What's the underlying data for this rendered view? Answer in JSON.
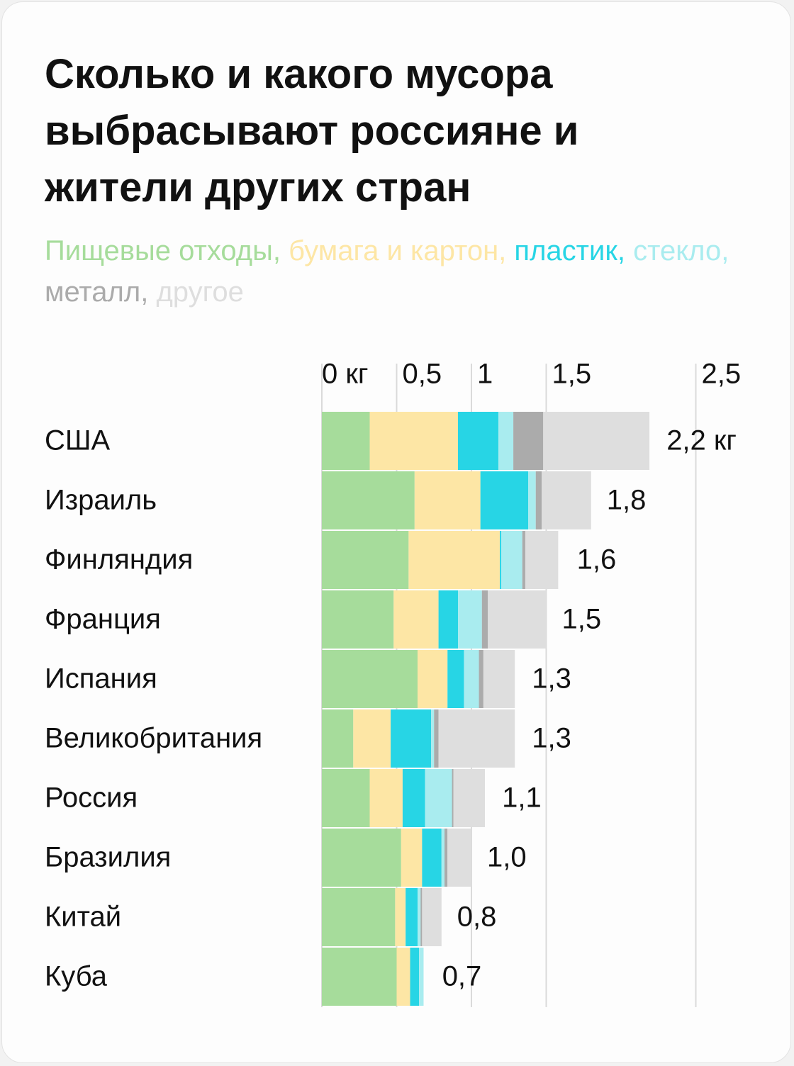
{
  "chart_data": {
    "type": "stacked-bar-horizontal",
    "title": "Сколько и какого мусора выбрасывают россияне и жители других стран",
    "legend_separator": ",",
    "categories": [
      "США",
      "Израиль",
      "Финляндия",
      "Франция",
      "Испания",
      "Великобритания",
      "Россия",
      "Бразилия",
      "Китай",
      "Куба"
    ],
    "series": [
      {
        "name": "Пищевые отходы",
        "color": "#a6dc9b",
        "values": [
          0.32,
          0.62,
          0.58,
          0.48,
          0.64,
          0.21,
          0.32,
          0.53,
          0.49,
          0.5
        ]
      },
      {
        "name": "бумага и картон",
        "color": "#fde6a5",
        "values": [
          0.59,
          0.44,
          0.61,
          0.3,
          0.2,
          0.25,
          0.22,
          0.14,
          0.07,
          0.09
        ]
      },
      {
        "name": "пластик",
        "color": "#27d5e5",
        "values": [
          0.27,
          0.32,
          0.01,
          0.13,
          0.11,
          0.27,
          0.15,
          0.13,
          0.08,
          0.06
        ]
      },
      {
        "name": "стекло",
        "color": "#a9ecef",
        "values": [
          0.1,
          0.05,
          0.14,
          0.16,
          0.1,
          0.02,
          0.18,
          0.02,
          0.02,
          0.03
        ]
      },
      {
        "name": "металл",
        "color": "#ababab",
        "values": [
          0.2,
          0.04,
          0.02,
          0.04,
          0.03,
          0.03,
          0.01,
          0.02,
          0.01,
          0
        ]
      },
      {
        "name": "другое",
        "color": "#dedede",
        "values": [
          0.71,
          0.33,
          0.22,
          0.39,
          0.21,
          0.51,
          0.21,
          0.16,
          0.13,
          0
        ]
      }
    ],
    "totals": {
      "values": [
        2.2,
        1.8,
        1.6,
        1.5,
        1.3,
        1.3,
        1.1,
        1.0,
        0.8,
        0.7
      ],
      "value_labels": [
        "2,2 кг",
        "1,8",
        "1,6",
        "1,5",
        "1,3",
        "1,3",
        "1,1",
        "1,0",
        "0,8",
        "0,7"
      ]
    },
    "xlim": [
      0,
      3
    ],
    "xticks": [
      {
        "value": 0,
        "label": "0 кг"
      },
      {
        "value": 0.5,
        "label": "0,5"
      },
      1,
      {
        "value": 1.5,
        "label": "1,5"
      },
      {
        "value": 2.5,
        "label": "2,5"
      }
    ],
    "grid": true
  }
}
